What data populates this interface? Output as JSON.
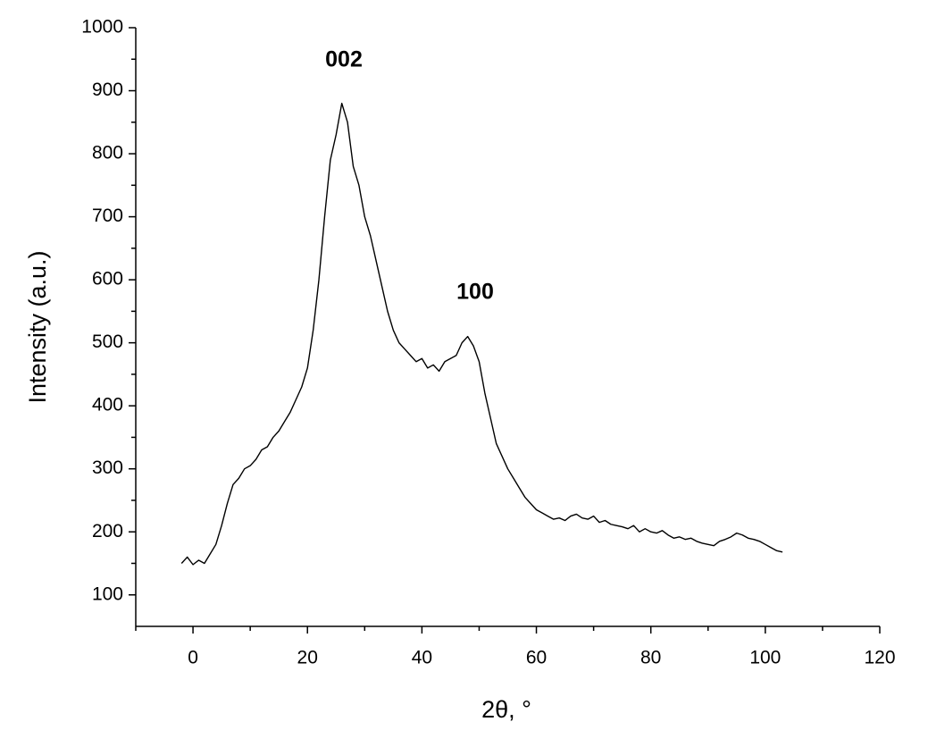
{
  "chart_data": {
    "type": "line",
    "xlabel": "2θ, °",
    "ylabel": "Intensity (a.u.)",
    "annotations": [
      "002",
      "100"
    ],
    "color": "#000000",
    "x": [
      -2,
      -1,
      0,
      1,
      2,
      3,
      4,
      5,
      6,
      7,
      8,
      9,
      10,
      11,
      12,
      13,
      14,
      15,
      16,
      17,
      18,
      19,
      20,
      21,
      22,
      23,
      24,
      25,
      26,
      27,
      28,
      29,
      30,
      31,
      32,
      33,
      34,
      35,
      36,
      37,
      38,
      39,
      40,
      41,
      42,
      43,
      44,
      45,
      46,
      47,
      48,
      49,
      50,
      51,
      52,
      53,
      54,
      55,
      56,
      57,
      58,
      59,
      60,
      61,
      62,
      63,
      64,
      65,
      66,
      67,
      68,
      69,
      70,
      71,
      72,
      73,
      74,
      75,
      76,
      77,
      78,
      79,
      80,
      81,
      82,
      83,
      84,
      85,
      86,
      87,
      88,
      89,
      90,
      91,
      92,
      93,
      94,
      95,
      96,
      97,
      98,
      99,
      100,
      101,
      102,
      103
    ],
    "values": [
      150,
      160,
      148,
      155,
      150,
      165,
      180,
      210,
      245,
      275,
      285,
      300,
      305,
      315,
      330,
      335,
      350,
      360,
      375,
      390,
      410,
      430,
      460,
      520,
      600,
      700,
      790,
      830,
      880,
      850,
      780,
      750,
      700,
      670,
      630,
      590,
      550,
      520,
      500,
      490,
      480,
      470,
      475,
      460,
      465,
      455,
      470,
      475,
      480,
      500,
      510,
      495,
      470,
      420,
      380,
      340,
      320,
      300,
      285,
      270,
      255,
      245,
      235,
      230,
      225,
      220,
      222,
      218,
      225,
      228,
      222,
      220,
      225,
      215,
      218,
      212,
      210,
      208,
      205,
      210,
      200,
      205,
      200,
      198,
      202,
      195,
      190,
      192,
      188,
      190,
      185,
      182,
      180,
      178,
      185,
      188,
      192,
      198,
      195,
      190,
      188,
      185,
      180,
      175,
      170,
      168
    ],
    "xlim": [
      -10,
      120
    ],
    "ylim": [
      50,
      1000
    ],
    "xticks": [
      0,
      20,
      40,
      60,
      80,
      100,
      120
    ],
    "yticks": [
      100,
      200,
      300,
      400,
      500,
      600,
      700,
      800,
      900,
      1000
    ],
    "xminorticks": [
      -10,
      10,
      30,
      50,
      70,
      90,
      110
    ],
    "yminorticks": [
      150,
      250,
      350,
      450,
      550,
      650,
      750,
      850,
      950
    ],
    "grid": false
  }
}
